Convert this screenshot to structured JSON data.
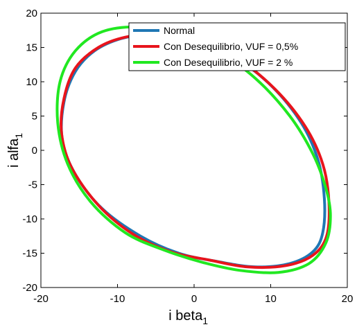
{
  "chart_data": {
    "type": "line",
    "title": "",
    "xlabel": "i beta",
    "xlabel_sub": "1",
    "ylabel": "i alfa",
    "ylabel_sub": "1",
    "xlim": [
      -20,
      20
    ],
    "ylim": [
      -20,
      20
    ],
    "xticks": [
      -20,
      -10,
      0,
      10,
      20
    ],
    "yticks": [
      -20,
      -15,
      -10,
      -5,
      0,
      5,
      10,
      15,
      20
    ],
    "grid": false,
    "legend_position": "top-right",
    "series": [
      {
        "name": "Normal",
        "color": "#1f77b4",
        "points": [
          [
            17.0,
            -7.0
          ],
          [
            16.8,
            -12.0
          ],
          [
            15.5,
            -14.8
          ],
          [
            12.5,
            -16.5
          ],
          [
            8.0,
            -17.0
          ],
          [
            3.0,
            -16.2
          ],
          [
            -2.0,
            -15.0
          ],
          [
            -7.0,
            -12.5
          ],
          [
            -12.0,
            -8.5
          ],
          [
            -15.5,
            -3.5
          ],
          [
            -17.2,
            1.5
          ],
          [
            -17.0,
            7.0
          ],
          [
            -15.5,
            11.5
          ],
          [
            -13.0,
            14.5
          ],
          [
            -9.5,
            16.3
          ],
          [
            -5.0,
            17.0
          ],
          [
            0.0,
            16.2
          ],
          [
            5.0,
            13.8
          ],
          [
            10.0,
            9.5
          ],
          [
            14.0,
            4.0
          ],
          [
            16.2,
            -1.5
          ],
          [
            17.0,
            -7.0
          ]
        ]
      },
      {
        "name": "Con Desequilibrio, VUF = 0,5%",
        "color": "#e8141c",
        "points": [
          [
            17.6,
            -7.5
          ],
          [
            17.3,
            -12.5
          ],
          [
            15.5,
            -15.3
          ],
          [
            12.0,
            -16.8
          ],
          [
            7.0,
            -17.0
          ],
          [
            2.0,
            -16.0
          ],
          [
            -3.0,
            -14.8
          ],
          [
            -8.0,
            -12.2
          ],
          [
            -12.5,
            -8.0
          ],
          [
            -16.0,
            -2.5
          ],
          [
            -17.3,
            2.5
          ],
          [
            -17.0,
            7.5
          ],
          [
            -15.5,
            12.0
          ],
          [
            -12.5,
            15.0
          ],
          [
            -9.0,
            16.5
          ],
          [
            -4.5,
            17.0
          ],
          [
            0.5,
            16.0
          ],
          [
            5.5,
            13.5
          ],
          [
            10.5,
            9.0
          ],
          [
            14.5,
            3.5
          ],
          [
            16.8,
            -2.0
          ],
          [
            17.6,
            -7.5
          ]
        ]
      },
      {
        "name": "Con Desequilibrio, VUF = 2 %",
        "color": "#21e821",
        "points": [
          [
            17.2,
            -5.5
          ],
          [
            17.8,
            -9.5
          ],
          [
            17.2,
            -13.5
          ],
          [
            15.0,
            -16.5
          ],
          [
            11.0,
            -17.8
          ],
          [
            6.0,
            -17.5
          ],
          [
            1.0,
            -16.3
          ],
          [
            -4.0,
            -14.5
          ],
          [
            -9.0,
            -12.0
          ],
          [
            -13.5,
            -7.5
          ],
          [
            -16.5,
            -2.0
          ],
          [
            -17.8,
            4.0
          ],
          [
            -17.5,
            10.0
          ],
          [
            -15.5,
            14.5
          ],
          [
            -12.0,
            17.3
          ],
          [
            -7.0,
            18.0
          ],
          [
            -2.0,
            17.0
          ],
          [
            3.0,
            14.5
          ],
          [
            8.0,
            10.5
          ],
          [
            12.5,
            5.0
          ],
          [
            15.5,
            -0.5
          ],
          [
            17.2,
            -5.5
          ]
        ]
      }
    ]
  }
}
